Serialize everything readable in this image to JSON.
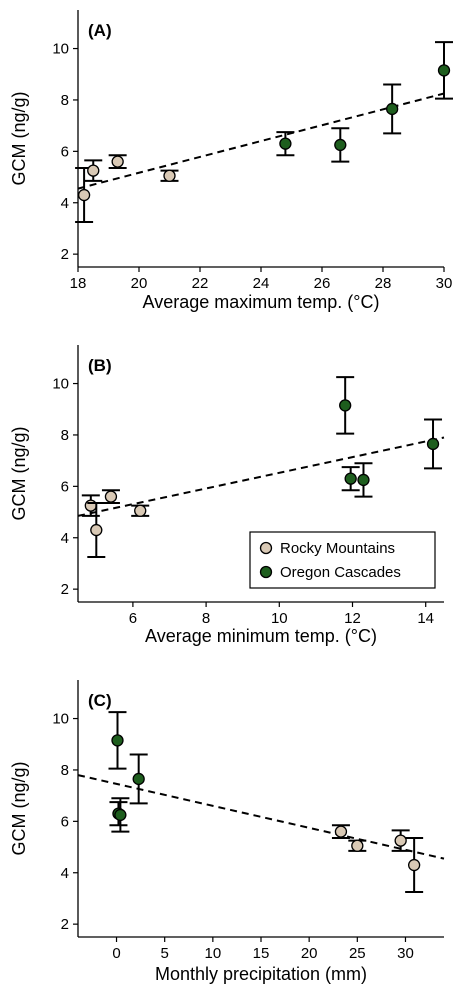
{
  "chart_data": [
    {
      "type": "scatter",
      "panel_label": "(A)",
      "xlabel": "Average maximum temp. (°C)",
      "ylabel": "GCM (ng/g)",
      "xlim": [
        18,
        30
      ],
      "ylim": [
        1.5,
        11.5
      ],
      "xticks": [
        18,
        20,
        22,
        24,
        26,
        28,
        30
      ],
      "yticks": [
        2,
        4,
        6,
        8,
        10
      ],
      "series": [
        {
          "color": "#d9c9b5",
          "points": [
            {
              "x": 18.2,
              "y": 4.3,
              "err": 1.05
            },
            {
              "x": 18.5,
              "y": 5.25,
              "err": 0.4
            },
            {
              "x": 19.3,
              "y": 5.6,
              "err": 0.25
            },
            {
              "x": 21.0,
              "y": 5.05,
              "err": 0.2
            }
          ]
        },
        {
          "color": "#1e5e1e",
          "points": [
            {
              "x": 24.8,
              "y": 6.3,
              "err": 0.45
            },
            {
              "x": 26.6,
              "y": 6.25,
              "err": 0.65
            },
            {
              "x": 28.3,
              "y": 7.65,
              "err": 0.95
            },
            {
              "x": 30.0,
              "y": 9.15,
              "err": 1.1
            }
          ]
        }
      ],
      "trendline": {
        "x1": 18,
        "y1": 4.55,
        "x2": 30,
        "y2": 8.25
      }
    },
    {
      "type": "scatter",
      "panel_label": "(B)",
      "xlabel": "Average minimum temp. (°C)",
      "ylabel": "GCM (ng/g)",
      "xlim": [
        4.5,
        14.5
      ],
      "ylim": [
        1.5,
        11.5
      ],
      "xticks": [
        6,
        8,
        10,
        12,
        14
      ],
      "yticks": [
        2,
        4,
        6,
        8,
        10
      ],
      "legend": {
        "position": "bottom-right",
        "entries": [
          "Rocky Mountains",
          "Oregon Cascades"
        ]
      },
      "series": [
        {
          "name": "Rocky Mountains",
          "color": "#d9c9b5",
          "points": [
            {
              "x": 4.85,
              "y": 5.25,
              "err": 0.4
            },
            {
              "x": 5.0,
              "y": 4.3,
              "err": 1.05
            },
            {
              "x": 5.4,
              "y": 5.6,
              "err": 0.25
            },
            {
              "x": 6.2,
              "y": 5.05,
              "err": 0.2
            }
          ]
        },
        {
          "name": "Oregon Cascades",
          "color": "#1e5e1e",
          "points": [
            {
              "x": 11.8,
              "y": 9.15,
              "err": 1.1
            },
            {
              "x": 11.95,
              "y": 6.3,
              "err": 0.45
            },
            {
              "x": 12.3,
              "y": 6.25,
              "err": 0.65
            },
            {
              "x": 14.2,
              "y": 7.65,
              "err": 0.95
            }
          ]
        }
      ],
      "trendline": {
        "x1": 4.5,
        "y1": 4.85,
        "x2": 14.5,
        "y2": 7.9
      }
    },
    {
      "type": "scatter",
      "panel_label": "(C)",
      "xlabel": "Monthly precipitation (mm)",
      "ylabel": "GCM (ng/g)",
      "xlim": [
        -4,
        34
      ],
      "ylim": [
        1.5,
        11.5
      ],
      "xticks": [
        0,
        5,
        10,
        15,
        20,
        25,
        30
      ],
      "yticks": [
        2,
        4,
        6,
        8,
        10
      ],
      "series": [
        {
          "color": "#d9c9b5",
          "points": [
            {
              "x": 23.3,
              "y": 5.6,
              "err": 0.25
            },
            {
              "x": 25.0,
              "y": 5.05,
              "err": 0.2
            },
            {
              "x": 29.5,
              "y": 5.25,
              "err": 0.4
            },
            {
              "x": 30.9,
              "y": 4.3,
              "err": 1.05
            }
          ]
        },
        {
          "color": "#1e5e1e",
          "points": [
            {
              "x": 0.1,
              "y": 9.15,
              "err": 1.1
            },
            {
              "x": 0.2,
              "y": 6.3,
              "err": 0.45
            },
            {
              "x": 0.4,
              "y": 6.25,
              "err": 0.65
            },
            {
              "x": 2.3,
              "y": 7.65,
              "err": 0.95
            }
          ]
        }
      ],
      "trendline": {
        "x1": -4,
        "y1": 7.8,
        "x2": 34,
        "y2": 4.55
      }
    }
  ]
}
